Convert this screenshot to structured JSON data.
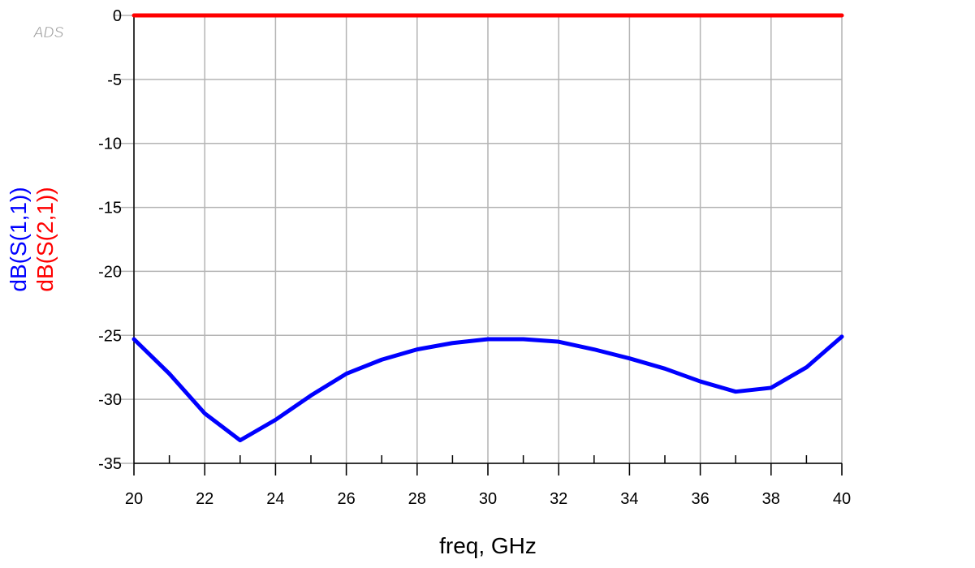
{
  "chart_data": {
    "type": "line",
    "watermark": "ADS",
    "xlabel": "freq, GHz",
    "x": [
      20,
      21,
      22,
      23,
      24,
      25,
      26,
      27,
      28,
      29,
      30,
      31,
      32,
      33,
      34,
      35,
      36,
      37,
      38,
      39,
      40
    ],
    "series": [
      {
        "name": "dB(S(1,1))",
        "color": "#0000ff",
        "values": [
          -25.3,
          -28.0,
          -31.1,
          -33.2,
          -31.6,
          -29.7,
          -28.0,
          -26.9,
          -26.1,
          -25.6,
          -25.3,
          -25.3,
          -25.5,
          -26.1,
          -26.8,
          -27.6,
          -28.6,
          -29.4,
          -29.1,
          -27.5,
          -25.1
        ]
      },
      {
        "name": "dB(S(2,1))",
        "color": "#ff0000",
        "values": [
          0,
          0,
          0,
          0,
          0,
          0,
          0,
          0,
          0,
          0,
          0,
          0,
          0,
          0,
          0,
          0,
          0,
          0,
          0,
          0,
          0
        ]
      }
    ],
    "xlim": [
      20,
      40
    ],
    "ylim": [
      -35,
      0
    ],
    "xticks": [
      20,
      22,
      24,
      26,
      28,
      30,
      32,
      34,
      36,
      38,
      40
    ],
    "xminorticks": [
      21,
      23,
      25,
      27,
      29,
      31,
      33,
      35,
      37,
      39
    ],
    "yticks": [
      0,
      -5,
      -10,
      -15,
      -20,
      -25,
      -30,
      -35
    ],
    "grid": true
  }
}
